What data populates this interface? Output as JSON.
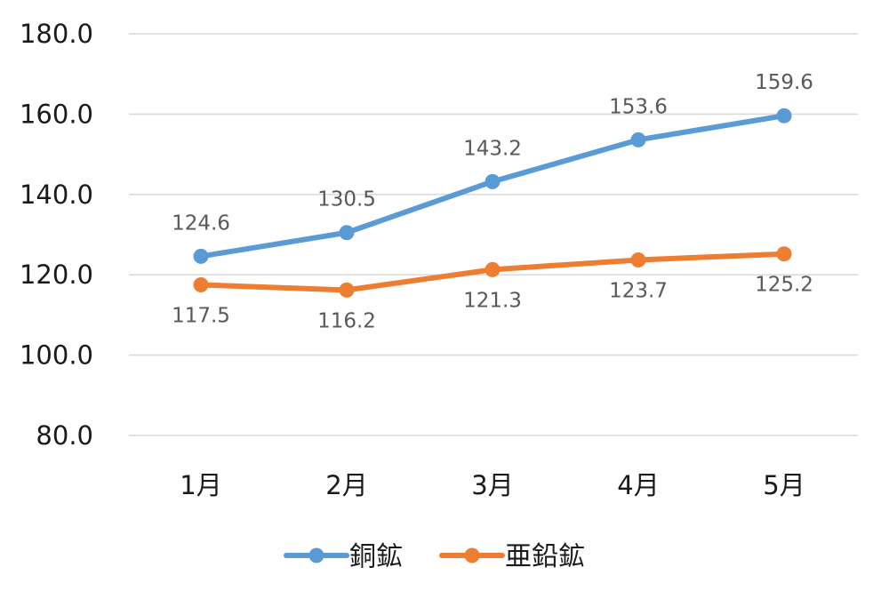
{
  "chart_data": {
    "type": "line",
    "categories": [
      "1月",
      "2月",
      "3月",
      "4月",
      "5月"
    ],
    "series": [
      {
        "name": "銅鉱",
        "values": [
          124.6,
          130.5,
          143.2,
          153.6,
          159.6
        ],
        "color": "#5B9BD5",
        "labels": [
          "124.6",
          "130.5",
          "143.2",
          "153.6",
          "159.6"
        ],
        "label_position": "above"
      },
      {
        "name": "亜鉛鉱",
        "values": [
          117.5,
          116.2,
          121.3,
          123.7,
          125.2
        ],
        "color": "#ED7D31",
        "labels": [
          "117.5",
          "116.2",
          "121.3",
          "123.7",
          "125.2"
        ],
        "label_position": "below"
      }
    ],
    "yticks": [
      "180.0",
      "160.0",
      "140.0",
      "120.0",
      "100.0",
      "80.0"
    ],
    "ytick_values": [
      180,
      160,
      140,
      120,
      100,
      80
    ],
    "ylim": [
      80,
      180
    ],
    "grid": true,
    "legend_position": "bottom",
    "title": "",
    "xlabel": "",
    "ylabel": ""
  }
}
